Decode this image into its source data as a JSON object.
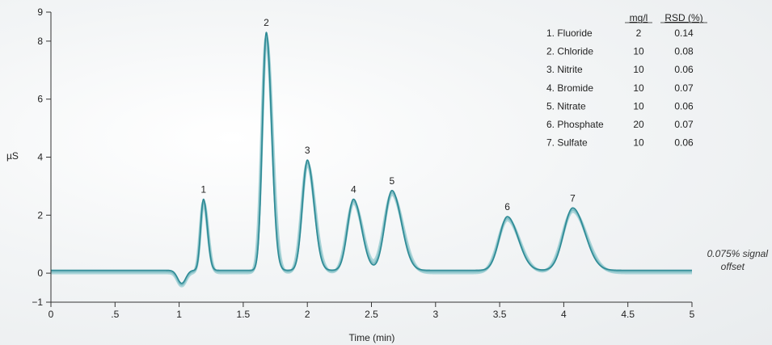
{
  "chart_data": {
    "type": "line",
    "xlabel": "Time (min)",
    "ylabel": "µS",
    "xlim": [
      0,
      5
    ],
    "ylim": [
      -1,
      9
    ],
    "x_ticks": [
      {
        "value": 0,
        "label": "0"
      },
      {
        "value": 0.5,
        "label": ".5"
      },
      {
        "value": 1,
        "label": "1"
      },
      {
        "value": 1.5,
        "label": "1.5"
      },
      {
        "value": 2,
        "label": "2"
      },
      {
        "value": 2.5,
        "label": "2.5"
      },
      {
        "value": 3,
        "label": "3"
      },
      {
        "value": 3.5,
        "label": "3.5"
      },
      {
        "value": 4,
        "label": "4"
      },
      {
        "value": 4.5,
        "label": "4.5"
      },
      {
        "value": 5,
        "label": "5"
      }
    ],
    "y_ticks": [
      {
        "value": -1,
        "label": "−1"
      },
      {
        "value": 0,
        "label": "0"
      },
      {
        "value": 2,
        "label": "2"
      },
      {
        "value": 4,
        "label": "4"
      },
      {
        "value": 6,
        "label": "6"
      },
      {
        "value": 8,
        "label": "8"
      },
      {
        "value": 9,
        "label": "9"
      }
    ],
    "grid": false,
    "baseline": 0.1,
    "dip": {
      "time": 1.02,
      "depth": -0.35
    },
    "peaks": [
      {
        "label": "1",
        "time": 1.19,
        "height": 2.55
      },
      {
        "label": "2",
        "time": 1.68,
        "height": 8.3
      },
      {
        "label": "3",
        "time": 2.0,
        "height": 3.9
      },
      {
        "label": "4",
        "time": 2.36,
        "height": 2.55
      },
      {
        "label": "5",
        "time": 2.66,
        "height": 2.85
      },
      {
        "label": "6",
        "time": 3.56,
        "height": 1.95
      },
      {
        "label": "7",
        "time": 4.07,
        "height": 2.25
      }
    ],
    "legend": {
      "position": "top-right",
      "header_conc": "mg/l",
      "header_rsd": "RSD (%)",
      "rows": [
        {
          "name": "1. Fluoride",
          "conc": "2",
          "rsd": "0.14"
        },
        {
          "name": "2. Chloride",
          "conc": "10",
          "rsd": "0.08"
        },
        {
          "name": "3. Nitrite",
          "conc": "10",
          "rsd": "0.06"
        },
        {
          "name": "4. Bromide",
          "conc": "10",
          "rsd": "0.07"
        },
        {
          "name": "5. Nitrate",
          "conc": "10",
          "rsd": "0.06"
        },
        {
          "name": "6. Phosphate",
          "conc": "20",
          "rsd": "0.07"
        },
        {
          "name": "7. Sulfate",
          "conc": "10",
          "rsd": "0.06"
        }
      ]
    },
    "annotation_line1": "0.075% signal",
    "annotation_line2": "offset",
    "colors": {
      "trace": "#2d8a95",
      "trace_shadow": "#9fcfd4",
      "axis": "#333333"
    }
  }
}
